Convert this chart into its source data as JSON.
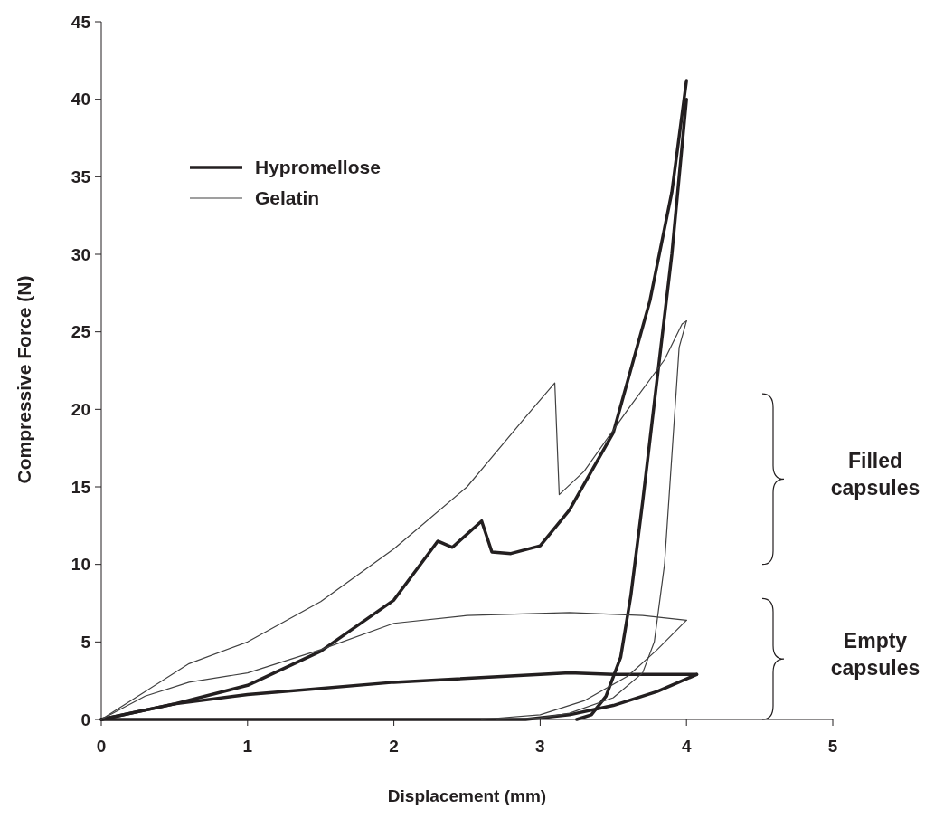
{
  "chart_data": {
    "type": "line",
    "xlabel": "Displacement (mm)",
    "ylabel": "Compressive Force (N)",
    "xlim": [
      0,
      5
    ],
    "xticks": [
      0,
      1,
      2,
      3,
      4,
      5
    ],
    "ylim": [
      0,
      45
    ],
    "yticks": [
      0,
      5,
      10,
      15,
      20,
      25,
      30,
      35,
      40,
      45
    ],
    "grid": false,
    "legend": "top left",
    "marker": "none",
    "line_style": "solid",
    "annotations": [
      "Filled capsules",
      "Empty capsules"
    ],
    "series": [
      {
        "name": "Hypromellose",
        "color": "#231f20",
        "x": [
          0,
          0.5,
          1,
          1.5,
          2,
          2.3,
          2.4,
          2.6,
          2.67,
          2.8,
          3.0,
          3.2,
          3.5,
          3.75,
          3.9,
          4.0
        ],
        "values": [
          0,
          1.0,
          2.2,
          4.4,
          7.7,
          11.5,
          11.1,
          12.8,
          10.8,
          10.7,
          11.2,
          13.5,
          18.5,
          27,
          34,
          41.2
        ]
      },
      {
        "color": "#231f20",
        "x": [
          4.0,
          3.9,
          3.8,
          3.7,
          3.62,
          3.55,
          3.45,
          3.35,
          3.25
        ],
        "values": [
          40,
          30,
          22,
          14,
          8,
          4,
          1.5,
          0.3,
          0
        ]
      },
      {
        "color": "#231f20",
        "x": [
          0,
          0.5,
          1,
          2,
          3,
          3.2,
          3.5,
          4.07
        ],
        "values": [
          0,
          1.0,
          1.6,
          2.4,
          2.9,
          3.0,
          2.9,
          2.9
        ]
      },
      {
        "color": "#231f20",
        "x": [
          4.07,
          3.8,
          3.5,
          3.2,
          2.9,
          1,
          0
        ],
        "values": [
          2.9,
          1.8,
          0.9,
          0.3,
          0,
          0,
          0
        ]
      },
      {
        "name": "Gelatin",
        "color": "#404040",
        "x": [
          0,
          0.3,
          0.6,
          1,
          1.5,
          2,
          2.5,
          2.9,
          3.1,
          3.13,
          3.3,
          3.6,
          3.85,
          3.97,
          4.0
        ],
        "values": [
          0,
          1.8,
          3.6,
          5.0,
          7.6,
          11,
          15,
          19.5,
          21.7,
          14.5,
          16,
          20,
          23.2,
          25.5,
          25.7
        ]
      },
      {
        "color": "#404040",
        "x": [
          4.0,
          3.95,
          3.9,
          3.85,
          3.78,
          3.7,
          3.5,
          3.2,
          3.0,
          2.7
        ],
        "values": [
          25.7,
          24,
          17,
          10,
          5,
          3,
          1.4,
          0.4,
          0.1,
          0
        ]
      },
      {
        "color": "#404040",
        "x": [
          0,
          0.3,
          0.6,
          1,
          1.5,
          2,
          2.5,
          3.2,
          3.7,
          4.0
        ],
        "values": [
          0,
          1.5,
          2.4,
          3.0,
          4.5,
          6.2,
          6.7,
          6.9,
          6.7,
          6.4
        ]
      },
      {
        "color": "#404040",
        "x": [
          4.0,
          3.8,
          3.6,
          3.3,
          3.0,
          2.6
        ],
        "values": [
          6.4,
          4.5,
          2.8,
          1.2,
          0.3,
          0
        ]
      }
    ]
  }
}
